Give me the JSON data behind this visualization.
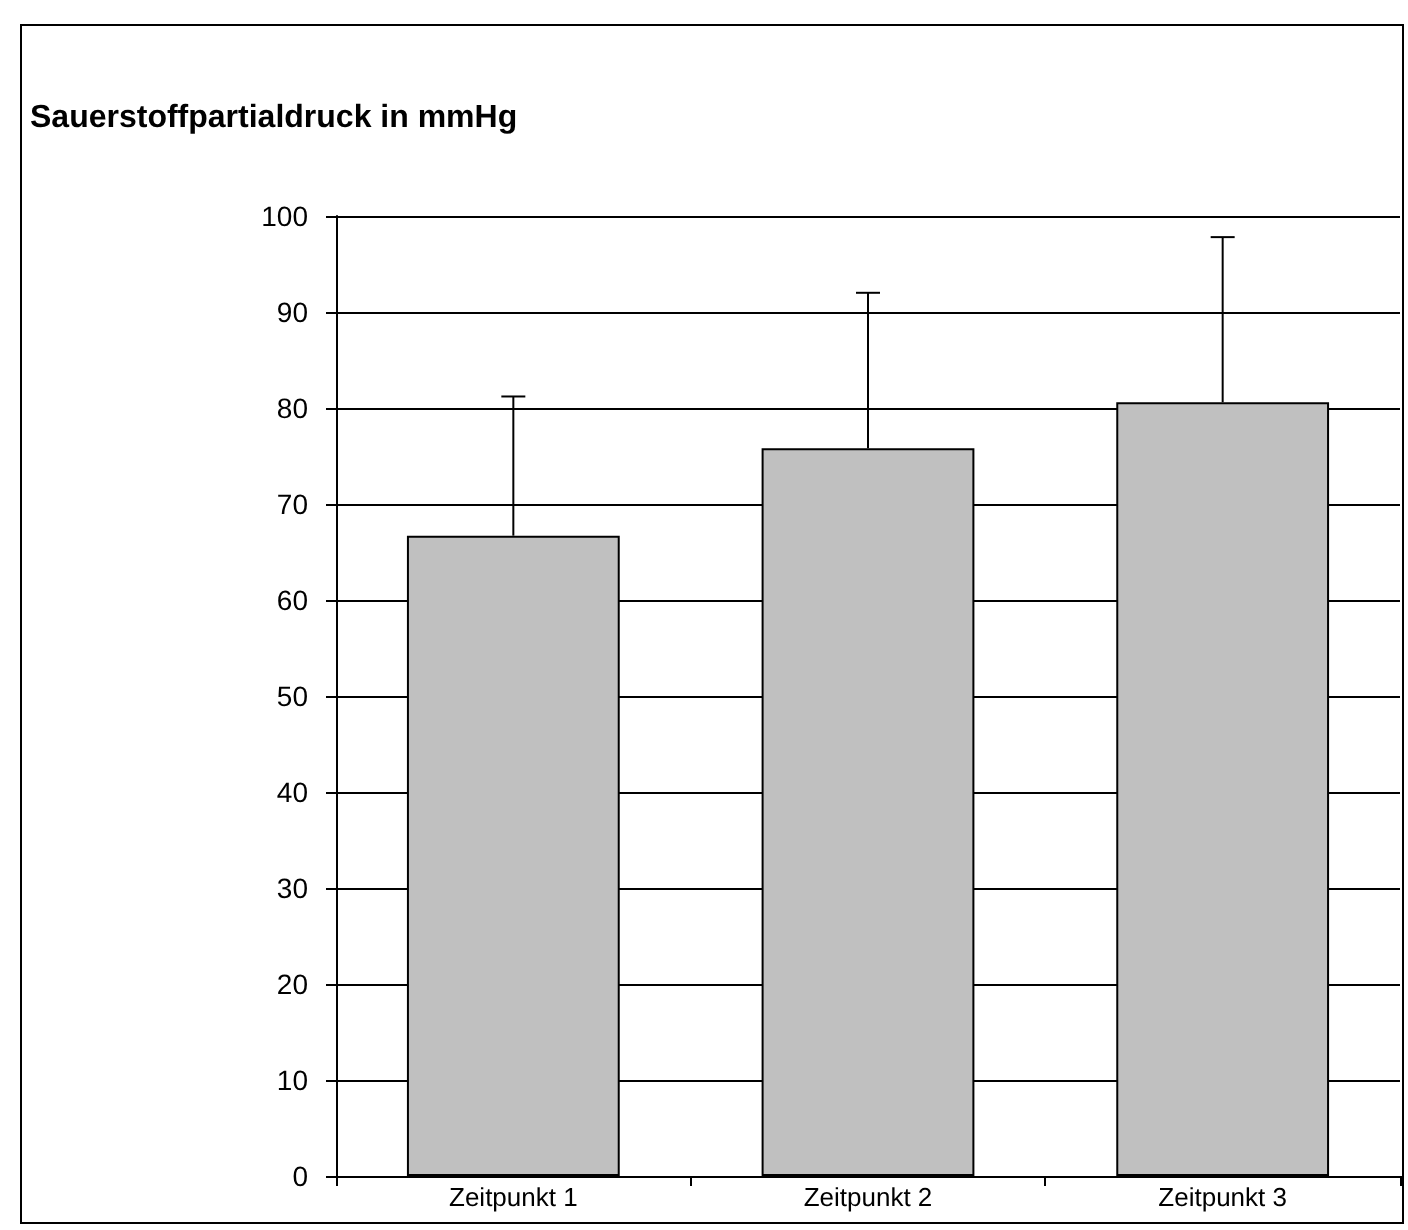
{
  "chart_data": {
    "type": "bar",
    "title": "Sauerstoffpartialdruck in mmHg",
    "categories": [
      "Zeitpunkt 1",
      "Zeitpunkt 2",
      "Zeitpunkt 3"
    ],
    "values": [
      66.7,
      75.8,
      80.6
    ],
    "errors": [
      [
        66.7,
        81.2
      ],
      [
        75.8,
        92.0
      ],
      [
        80.6,
        97.8
      ]
    ],
    "color": "#c0c0c0",
    "ylim": [
      0,
      100
    ],
    "yticks": [
      0,
      10,
      20,
      30,
      40,
      50,
      60,
      70,
      80,
      90,
      100
    ],
    "grid": "y"
  }
}
